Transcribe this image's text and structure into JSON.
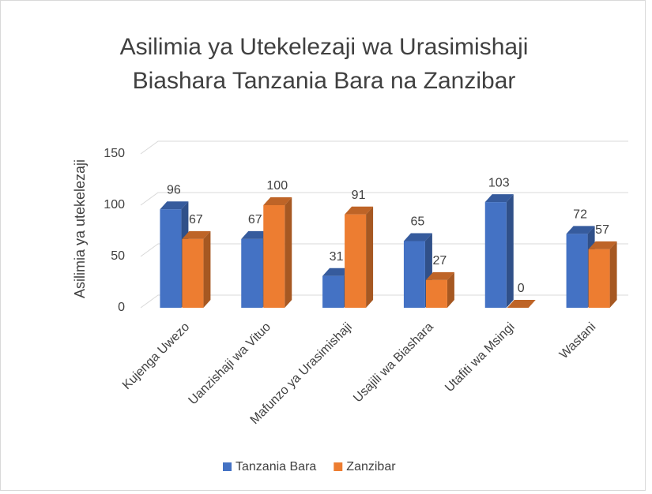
{
  "chart_data": {
    "type": "bar3d",
    "title": "Asilimia ya Utekelezaji wa Urasimishaji Biashara Tanzania Bara na Zanzibar",
    "y_label": "Asilimia ya utekelezaji",
    "categories": [
      "Kujenga Uwezo",
      "Uanzishaji wa Vituo",
      "Mafunzo ya Urasimishaji",
      "Usajili wa Biashara",
      "Utafiti wa Msingi",
      "Wastani"
    ],
    "series": [
      {
        "name": "Tanzania Bara",
        "color": "#4472c4",
        "values": [
          96,
          67,
          31,
          65,
          103,
          72
        ]
      },
      {
        "name": "Zanzibar",
        "color": "#ed7d31",
        "values": [
          67,
          100,
          91,
          27,
          0,
          57
        ]
      }
    ],
    "ylim": [
      0,
      150
    ],
    "yticks": [
      0,
      50,
      100,
      150
    ],
    "grid": true,
    "legend": "bottom"
  }
}
